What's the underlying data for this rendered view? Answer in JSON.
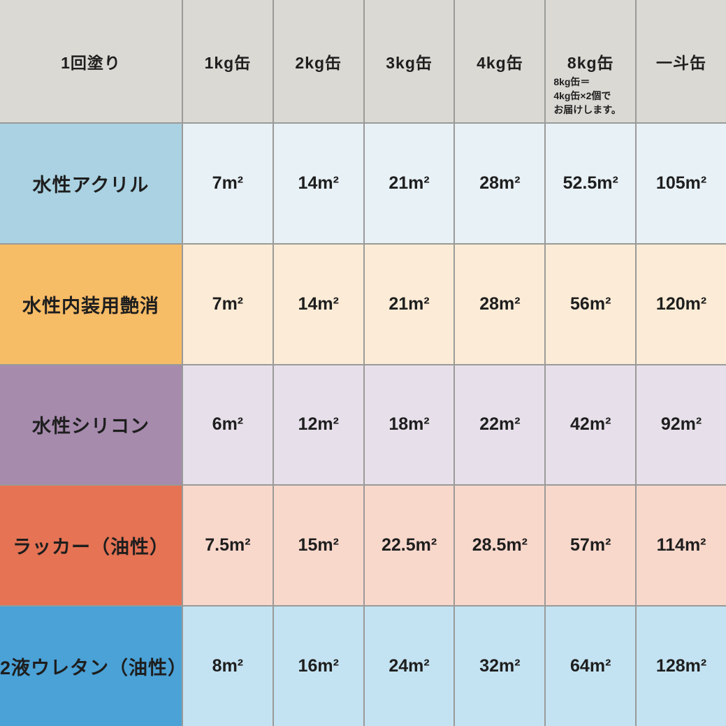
{
  "palette": {
    "header_bg": "#dbd9d4",
    "grid_line": "#9a9a98",
    "text": "#1e1e1e",
    "rows": [
      {
        "label_bg": "#aad2e2",
        "cell_bg": "#e8f1f6"
      },
      {
        "label_bg": "#f7bc66",
        "cell_bg": "#fcecd7"
      },
      {
        "label_bg": "#a68bad",
        "cell_bg": "#e7e0ea"
      },
      {
        "label_bg": "#e57354",
        "cell_bg": "#f9d8cc"
      },
      {
        "label_bg": "#4aa2d7",
        "cell_bg": "#c4e3f2"
      }
    ]
  },
  "table": {
    "corner_label": "1回塗り",
    "columns": [
      "1kg缶",
      "2kg缶",
      "3kg缶",
      "4kg缶",
      "8kg缶",
      "一斗缶"
    ],
    "note_under_8kg": "8kg缶＝\n4kg缶×2個で\nお届けします。",
    "rows": [
      {
        "label": "水性アクリル",
        "values": [
          "7m²",
          "14m²",
          "21m²",
          "28m²",
          "52.5m²",
          "105m²"
        ]
      },
      {
        "label": "水性内装用艶消",
        "values": [
          "7m²",
          "14m²",
          "21m²",
          "28m²",
          "56m²",
          "120m²"
        ]
      },
      {
        "label": "水性シリコン",
        "values": [
          "6m²",
          "12m²",
          "18m²",
          "22m²",
          "42m²",
          "92m²"
        ]
      },
      {
        "label": "ラッカー（油性）",
        "values": [
          "7.5m²",
          "15m²",
          "22.5m²",
          "28.5m²",
          "57m²",
          "114m²"
        ]
      },
      {
        "label": "2液ウレタン（油性）",
        "values": [
          "8m²",
          "16m²",
          "24m²",
          "32m²",
          "64m²",
          "128m²"
        ]
      }
    ]
  },
  "chart_data": {
    "type": "table",
    "corner_header": "1回塗り",
    "columns": [
      "1kg缶",
      "2kg缶",
      "3kg缶",
      "4kg缶",
      "8kg缶",
      "一斗缶"
    ],
    "unit": "m²",
    "rows": [
      {
        "name": "水性アクリル",
        "values": [
          7,
          14,
          21,
          28,
          52.5,
          105
        ]
      },
      {
        "name": "水性内装用艶消",
        "values": [
          7,
          14,
          21,
          28,
          56,
          120
        ]
      },
      {
        "name": "水性シリコン",
        "values": [
          6,
          12,
          18,
          22,
          42,
          92
        ]
      },
      {
        "name": "ラッカー（油性）",
        "values": [
          7.5,
          15,
          22.5,
          28.5,
          57,
          114
        ]
      },
      {
        "name": "2液ウレタン（油性）",
        "values": [
          8,
          16,
          24,
          32,
          64,
          128
        ]
      }
    ],
    "note": "8kg缶＝4kg缶×2個でお届けします。"
  }
}
